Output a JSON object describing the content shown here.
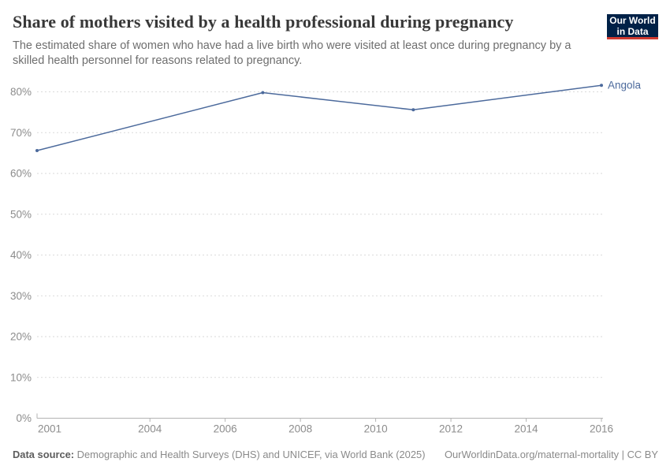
{
  "header": {
    "title": "Share of mothers visited by a health professional during pregnancy",
    "subtitle": "The estimated share of women who have had a live birth who were visited at least once during pregnancy by a skilled health personnel for reasons related to pregnancy.",
    "logo": {
      "line1": "Our World",
      "line2": "in Data"
    }
  },
  "chart_data": {
    "type": "line",
    "title": "Share of mothers visited by a health professional during pregnancy",
    "series": [
      {
        "name": "Angola",
        "color": "#4C6A9C",
        "points": [
          {
            "x": 2001,
            "y": 65.6
          },
          {
            "x": 2007,
            "y": 79.8
          },
          {
            "x": 2011,
            "y": 75.6
          },
          {
            "x": 2016,
            "y": 81.6
          }
        ]
      }
    ],
    "end_label": "Angola",
    "x_ticks": [
      2001,
      2004,
      2006,
      2008,
      2010,
      2012,
      2014,
      2016
    ],
    "y_ticks": [
      0,
      10,
      20,
      30,
      40,
      50,
      60,
      70,
      80
    ],
    "y_tick_suffix": "%",
    "xlim": [
      2001,
      2016
    ],
    "ylim": [
      0,
      80
    ],
    "grid": "horizontal-dashed",
    "legend_position": "end-of-line-label"
  },
  "footer": {
    "source_label": "Data source:",
    "source_text": " Demographic and Health Surveys (DHS) and UNICEF, via World Bank (2025)",
    "credit": "OurWorldinData.org/maternal-mortality | CC BY"
  },
  "colors": {
    "line": "#4C6A9C",
    "end_label": "#4C6A9C",
    "title": "#383838",
    "subtitle": "#6e6e6e",
    "tick_label": "#8c8c8c",
    "gridline": "#dadada",
    "axis_line": "#b3b3b3",
    "logo_background": "#002147",
    "logo_stripe": "#cf3b31",
    "footer_text": "#8a8a8a"
  }
}
